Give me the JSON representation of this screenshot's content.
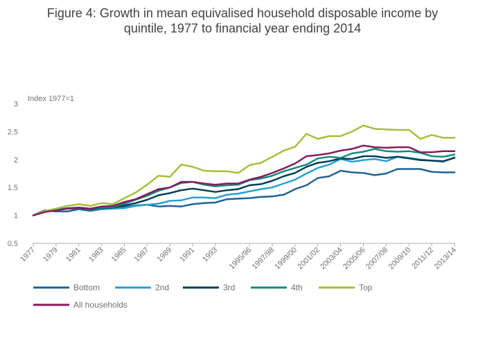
{
  "chart_data": {
    "type": "line",
    "title_lines": [
      "Figure 4: Growth in mean equivalised household disposable income by",
      "quintile, 1977 to financial year ending 2014"
    ],
    "ylabel": "Index 1977=1",
    "ylim": [
      0.5,
      3
    ],
    "yticks": [
      "0.5",
      "1",
      "1.5",
      "2",
      "2.5",
      "3"
    ],
    "grid": false,
    "legend_position": "bottom-left",
    "x": [
      "1977",
      "1978",
      "1979",
      "1980",
      "1981",
      "1982",
      "1983",
      "1984",
      "1985",
      "1986",
      "1987",
      "1988",
      "1989",
      "1990",
      "1991",
      "1992",
      "1993",
      "1994",
      "1994/95",
      "1995/96",
      "1996/97",
      "1997/98",
      "1998/99",
      "1999/00",
      "2000/01",
      "2001/02",
      "2002/03",
      "2003/04",
      "2004/05",
      "2005/06",
      "2006/07",
      "2007/08",
      "2008/09",
      "2009/10",
      "2010/11",
      "2011/12",
      "2012/13",
      "2013/14"
    ],
    "xticks": [
      "1977",
      "1979",
      "1981",
      "1983",
      "1985",
      "1987",
      "1989",
      "1991",
      "1993",
      "1995/96",
      "1997/98",
      "1999/00",
      "2001/02",
      "2003/04",
      "2005/06",
      "2007/08",
      "2009/10",
      "2011/12",
      "2013/14"
    ],
    "series": [
      {
        "name": "Bottom",
        "color": "#206095",
        "values": [
          1.0,
          1.09,
          1.07,
          1.07,
          1.11,
          1.08,
          1.11,
          1.13,
          1.15,
          1.18,
          1.19,
          1.16,
          1.17,
          1.16,
          1.2,
          1.22,
          1.23,
          1.29,
          1.3,
          1.31,
          1.33,
          1.34,
          1.37,
          1.47,
          1.54,
          1.67,
          1.7,
          1.8,
          1.77,
          1.76,
          1.72,
          1.75,
          1.83,
          1.83,
          1.83,
          1.78,
          1.77,
          1.77
        ]
      },
      {
        "name": "2nd",
        "color": "#27A0CC",
        "values": [
          1.0,
          1.06,
          1.1,
          1.13,
          1.12,
          1.1,
          1.11,
          1.12,
          1.13,
          1.17,
          1.19,
          1.21,
          1.26,
          1.27,
          1.32,
          1.32,
          1.31,
          1.37,
          1.39,
          1.43,
          1.47,
          1.5,
          1.57,
          1.64,
          1.75,
          1.85,
          1.91,
          2.01,
          1.96,
          1.99,
          2.01,
          1.97,
          2.05,
          2.03,
          2.0,
          1.98,
          1.96,
          2.04
        ]
      },
      {
        "name": "3rd",
        "color": "#003C57",
        "values": [
          1.0,
          1.08,
          1.1,
          1.12,
          1.13,
          1.11,
          1.13,
          1.14,
          1.18,
          1.22,
          1.28,
          1.36,
          1.4,
          1.45,
          1.48,
          1.45,
          1.42,
          1.45,
          1.47,
          1.54,
          1.56,
          1.62,
          1.7,
          1.76,
          1.87,
          1.94,
          1.97,
          2.02,
          2.01,
          2.06,
          2.06,
          2.03,
          2.05,
          2.02,
          1.99,
          1.98,
          1.97,
          2.03
        ]
      },
      {
        "name": "4th",
        "color": "#118C7B",
        "values": [
          1.0,
          1.07,
          1.1,
          1.13,
          1.14,
          1.12,
          1.14,
          1.15,
          1.21,
          1.28,
          1.35,
          1.44,
          1.5,
          1.58,
          1.6,
          1.55,
          1.52,
          1.54,
          1.55,
          1.63,
          1.66,
          1.71,
          1.79,
          1.85,
          1.91,
          2.02,
          2.05,
          2.03,
          2.11,
          2.14,
          2.19,
          2.15,
          2.14,
          2.15,
          2.12,
          2.06,
          2.05,
          2.09
        ]
      },
      {
        "name": "Top",
        "color": "#A8BD3A",
        "values": [
          1.0,
          1.08,
          1.12,
          1.17,
          1.2,
          1.17,
          1.22,
          1.2,
          1.31,
          1.41,
          1.55,
          1.71,
          1.69,
          1.91,
          1.87,
          1.8,
          1.79,
          1.79,
          1.76,
          1.9,
          1.94,
          2.05,
          2.16,
          2.23,
          2.46,
          2.37,
          2.42,
          2.42,
          2.5,
          2.61,
          2.55,
          2.54,
          2.53,
          2.53,
          2.37,
          2.44,
          2.39,
          2.39
        ]
      },
      {
        "name": "All households",
        "color": "#871A5B",
        "values": [
          1.0,
          1.06,
          1.09,
          1.12,
          1.14,
          1.12,
          1.16,
          1.17,
          1.24,
          1.29,
          1.38,
          1.47,
          1.5,
          1.6,
          1.6,
          1.57,
          1.55,
          1.57,
          1.57,
          1.64,
          1.69,
          1.76,
          1.84,
          1.93,
          2.06,
          2.08,
          2.11,
          2.16,
          2.19,
          2.25,
          2.22,
          2.21,
          2.22,
          2.22,
          2.13,
          2.13,
          2.15,
          2.15
        ]
      }
    ]
  }
}
